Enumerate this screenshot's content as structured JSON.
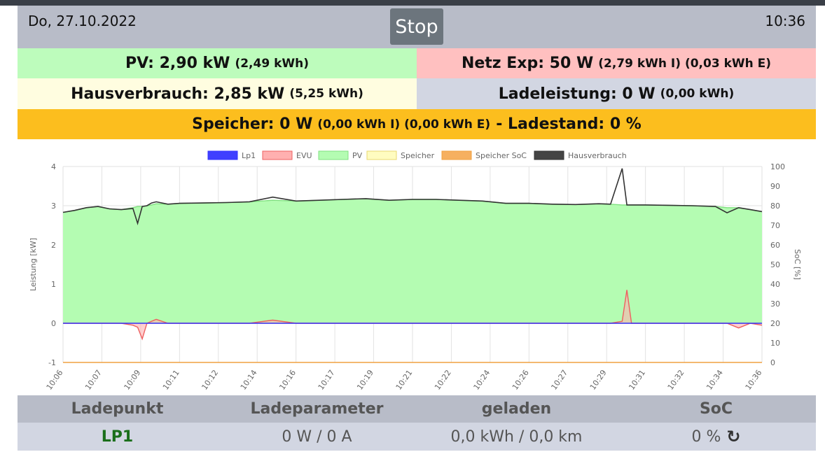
{
  "header": {
    "date": "Do, 27.10.2022",
    "time": "10:36",
    "stop_label": "Stop"
  },
  "summary": {
    "pv": {
      "label": "PV: 2,90 kW",
      "detail": "(2,49 kWh)"
    },
    "netz": {
      "label": "Netz Exp: 50 W",
      "detail": "(2,79 kWh I) (0,03 kWh E)"
    },
    "haus": {
      "label": "Hausverbrauch: 2,85 kW",
      "detail": "(5,25 kWh)"
    },
    "lade": {
      "label": "Ladeleistung: 0 W",
      "detail": "(0,00 kWh)"
    },
    "speicher": {
      "label": "Speicher: 0 W",
      "detail": "(0,00 kWh I) (0,00 kWh E)",
      "suffix": "- Ladestand: 0 %"
    }
  },
  "colors": {
    "pv": "#bdfcbc",
    "netz": "#ffc0c0",
    "haus": "#fffde0",
    "lade": "#d2d6e2",
    "speicher": "#fcbe1e",
    "header": "#b8bcc8"
  },
  "chart_data": {
    "type": "line",
    "legend_position": "top",
    "grid": true,
    "ylabel": "Leistung [kW]",
    "y2label": "SoC [%]",
    "ylim": [
      -1,
      4
    ],
    "y2lim": [
      0,
      100
    ],
    "yticks": [
      "4",
      "3",
      "2",
      "1",
      "0",
      "-1"
    ],
    "y2ticks": [
      "100",
      "90",
      "80",
      "70",
      "60",
      "50",
      "40",
      "30",
      "20",
      "10",
      "0"
    ],
    "xticks": [
      "10:06",
      "10:07",
      "10:09",
      "10:11",
      "10:12",
      "10:14",
      "10:16",
      "10:17",
      "10:19",
      "10:21",
      "10:22",
      "10:24",
      "10:26",
      "10:27",
      "10:29",
      "10:31",
      "10:32",
      "10:34",
      "10:36"
    ],
    "x_minutes": [
      0,
      0.5,
      1,
      1.5,
      2,
      2.5,
      3,
      3.2,
      3.4,
      3.6,
      3.8,
      4,
      4.5,
      5,
      6,
      7,
      8,
      9,
      10,
      11,
      12,
      13,
      14,
      15,
      16,
      17,
      18,
      19,
      20,
      21,
      22,
      23,
      23.5,
      24,
      24.2,
      24.4,
      24.6,
      25,
      26,
      27,
      28,
      28.5,
      29,
      29.5,
      30
    ],
    "series": [
      {
        "name": "Lp1",
        "color": "#3333ff",
        "fill": "#4040ff",
        "values": [
          0,
          0,
          0,
          0,
          0,
          0,
          0,
          0,
          0,
          0,
          0,
          0,
          0,
          0,
          0,
          0,
          0,
          0,
          0,
          0,
          0,
          0,
          0,
          0,
          0,
          0,
          0,
          0,
          0,
          0,
          0,
          0,
          0,
          0,
          0,
          0,
          0,
          0,
          0,
          0,
          0,
          0,
          0,
          0,
          0
        ]
      },
      {
        "name": "EVU",
        "color": "#ee6060",
        "fill": "#ffb0b0",
        "values": [
          0,
          0,
          0,
          0,
          0,
          0,
          -0.05,
          -0.1,
          -0.4,
          0,
          0.05,
          0.1,
          0,
          0,
          0,
          0,
          0,
          0.08,
          0,
          0,
          0,
          0,
          0,
          0,
          0,
          0,
          0,
          0,
          0,
          0,
          0,
          0,
          0,
          0.05,
          0.85,
          0,
          0,
          0,
          0,
          0,
          0,
          0,
          -0.12,
          0,
          -0.05
        ]
      },
      {
        "name": "PV",
        "color": "#80e080",
        "fill": "#b4fcb2",
        "values": [
          2.83,
          2.88,
          2.95,
          2.98,
          2.92,
          2.9,
          2.95,
          2.98,
          2.98,
          3.0,
          3.02,
          3.05,
          3.04,
          3.06,
          3.07,
          3.08,
          3.1,
          3.14,
          3.12,
          3.14,
          3.16,
          3.18,
          3.14,
          3.16,
          3.16,
          3.14,
          3.12,
          3.06,
          3.06,
          3.04,
          3.03,
          3.05,
          3.04,
          3.02,
          3.02,
          3.02,
          3.02,
          3.02,
          3.01,
          3.0,
          2.98,
          2.95,
          2.95,
          2.9,
          2.85
        ]
      },
      {
        "name": "Speicher",
        "color": "#e8d870",
        "fill": "#fffcc0",
        "values": [
          0,
          0,
          0,
          0,
          0,
          0,
          0,
          0,
          0,
          0,
          0,
          0,
          0,
          0,
          0,
          0,
          0,
          0,
          0,
          0,
          0,
          0,
          0,
          0,
          0,
          0,
          0,
          0,
          0,
          0,
          0,
          0,
          0,
          0,
          0,
          0,
          0,
          0,
          0,
          0,
          0,
          0,
          0,
          0,
          0
        ]
      },
      {
        "name": "Speicher SoC",
        "color": "#f0a040",
        "fill": "#f6b060",
        "axis": "right",
        "values": [
          0,
          0,
          0,
          0,
          0,
          0,
          0,
          0,
          0,
          0,
          0,
          0,
          0,
          0,
          0,
          0,
          0,
          0,
          0,
          0,
          0,
          0,
          0,
          0,
          0,
          0,
          0,
          0,
          0,
          0,
          0,
          0,
          0,
          0,
          0,
          0,
          0,
          0,
          0,
          0,
          0,
          0,
          0,
          0,
          0
        ]
      },
      {
        "name": "Hausverbrauch",
        "color": "#333333",
        "fill": "#444444",
        "values": [
          2.83,
          2.88,
          2.95,
          2.98,
          2.92,
          2.9,
          2.93,
          2.55,
          2.98,
          3.0,
          3.07,
          3.1,
          3.04,
          3.06,
          3.07,
          3.08,
          3.1,
          3.22,
          3.12,
          3.14,
          3.16,
          3.18,
          3.14,
          3.16,
          3.16,
          3.14,
          3.12,
          3.06,
          3.06,
          3.04,
          3.03,
          3.05,
          3.04,
          3.95,
          3.02,
          3.02,
          3.02,
          3.02,
          3.01,
          3.0,
          2.98,
          2.82,
          2.95,
          2.9,
          2.85
        ]
      }
    ]
  },
  "table": {
    "headers": [
      "Ladepunkt",
      "Ladeparameter",
      "geladen",
      "SoC"
    ],
    "rows": [
      {
        "ladepunkt": "LP1",
        "parameter": "0 W / 0 A",
        "geladen": "0,0 kWh / 0,0 km",
        "soc": "0 %"
      }
    ]
  }
}
